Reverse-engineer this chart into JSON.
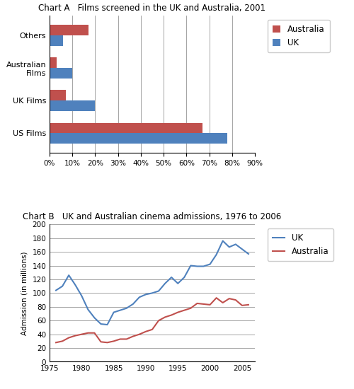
{
  "chartA": {
    "title": "Chart A   Films screened in the UK and Australia, 2001",
    "categories": [
      "US Films",
      "UK Films",
      "Australian\nFilms",
      "Others"
    ],
    "australia": [
      0.67,
      0.07,
      0.03,
      0.17
    ],
    "uk": [
      0.78,
      0.2,
      0.1,
      0.06
    ],
    "australia_color": "#C0504D",
    "uk_color": "#4F81BD",
    "xticks": [
      0.0,
      0.1,
      0.2,
      0.3,
      0.4,
      0.5,
      0.6,
      0.7,
      0.8,
      0.9
    ],
    "xtick_labels": [
      "0%",
      "10%",
      "20%",
      "30%",
      "40%",
      "50%",
      "60%",
      "70%",
      "80%",
      "90%"
    ]
  },
  "chartB": {
    "title": "Chart B   UK and Australian cinema admissions, 1976 to 2006",
    "years_uk": [
      1976,
      1977,
      1978,
      1979,
      1980,
      1981,
      1982,
      1983,
      1984,
      1985,
      1986,
      1987,
      1988,
      1989,
      1990,
      1991,
      1992,
      1993,
      1994,
      1995,
      1996,
      1997,
      1998,
      1999,
      2000,
      2001,
      2002,
      2003,
      2004,
      2005,
      2006
    ],
    "uk": [
      104,
      110,
      126,
      112,
      96,
      76,
      64,
      55,
      54,
      72,
      75,
      78,
      84,
      94,
      98,
      100,
      103,
      114,
      123,
      114,
      123,
      140,
      139,
      139,
      142,
      156,
      176,
      167,
      171,
      164,
      157
    ],
    "years_aus": [
      1976,
      1977,
      1978,
      1979,
      1980,
      1981,
      1982,
      1983,
      1984,
      1985,
      1986,
      1987,
      1988,
      1989,
      1990,
      1991,
      1992,
      1993,
      1994,
      1995,
      1996,
      1997,
      1998,
      1999,
      2000,
      2001,
      2002,
      2003,
      2004,
      2005,
      2006
    ],
    "australia": [
      28,
      30,
      35,
      38,
      40,
      42,
      42,
      29,
      28,
      30,
      33,
      33,
      37,
      40,
      44,
      47,
      60,
      65,
      68,
      72,
      75,
      78,
      85,
      84,
      83,
      93,
      86,
      92,
      90,
      82,
      83
    ],
    "uk_color": "#4F81BD",
    "australia_color": "#C0504D",
    "ylabel": "Admission (in millions)",
    "ylim": [
      0,
      200
    ],
    "yticks": [
      0,
      20,
      40,
      60,
      80,
      100,
      120,
      140,
      160,
      180,
      200
    ],
    "xlim": [
      1975,
      2007
    ],
    "xticks": [
      1975,
      1980,
      1985,
      1990,
      1995,
      2000,
      2005
    ]
  }
}
